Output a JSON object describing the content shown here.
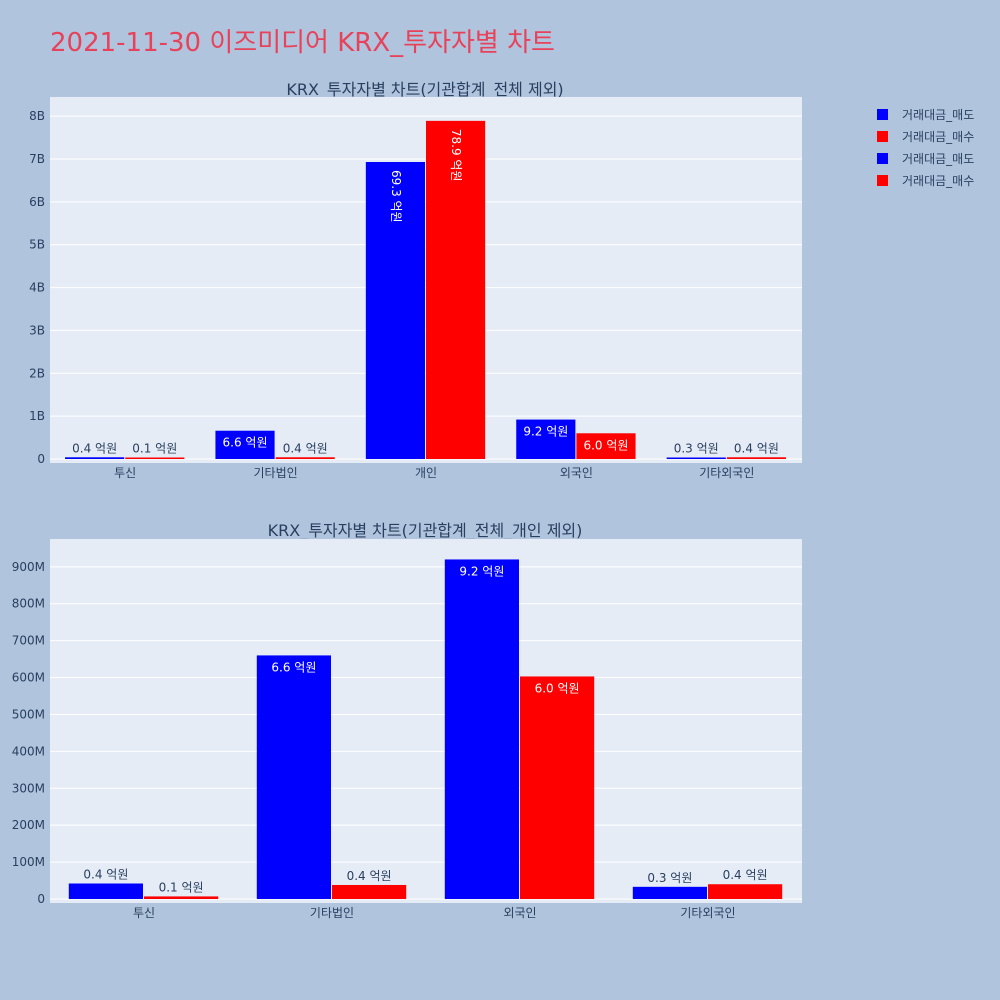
{
  "page_title": "2021-11-30 이즈미디어 KRX_투자자별 차트",
  "colors": {
    "sell": "#0000ff",
    "buy": "#ff0000",
    "plot_bg": "#e5ecf6",
    "page_bg": "#b0c4de",
    "title": "#e8425a"
  },
  "legend": {
    "placement": "top-right",
    "entries": [
      "거래대금_매도",
      "거래대금_매수",
      "거래대금_매도",
      "거래대금_매수"
    ]
  },
  "chart_data": [
    {
      "type": "bar",
      "title": "KRX_투자자별 차트(기관합계_전체 제외)",
      "categories": [
        "투신",
        "기타법인",
        "개인",
        "외국인",
        "기타외국인"
      ],
      "ylim": [
        0,
        8400000000
      ],
      "yticks": [
        0,
        1000000000,
        2000000000,
        3000000000,
        4000000000,
        5000000000,
        6000000000,
        7000000000,
        8000000000
      ],
      "ytick_labels": [
        "0",
        "1B",
        "2B",
        "3B",
        "4B",
        "5B",
        "6B",
        "7B",
        "8B"
      ],
      "grid": true,
      "series": [
        {
          "name": "거래대금_매도",
          "values": [
            40000000,
            660000000,
            6930000000,
            920000000,
            30000000
          ],
          "labels": [
            "0.4 억원",
            "6.6 억원",
            "69.3 억원",
            "9.2 억원",
            "0.3 억원"
          ]
        },
        {
          "name": "거래대금_매수",
          "values": [
            10000000,
            40000000,
            7890000000,
            600000000,
            40000000
          ],
          "labels": [
            "0.1 억원",
            "0.4 억원",
            "78.9 억원",
            "6.0 억원",
            "0.4 억원"
          ]
        }
      ]
    },
    {
      "type": "bar",
      "title": "KRX_투자자별 차트(기관합계_전체_개인 제외)",
      "categories": [
        "투신",
        "기타법인",
        "외국인",
        "기타외국인"
      ],
      "ylim": [
        0,
        970000000
      ],
      "yticks": [
        0,
        100000000,
        200000000,
        300000000,
        400000000,
        500000000,
        600000000,
        700000000,
        800000000,
        900000000
      ],
      "ytick_labels": [
        "0",
        "100M",
        "200M",
        "300M",
        "400M",
        "500M",
        "600M",
        "700M",
        "800M",
        "900M"
      ],
      "grid": true,
      "series": [
        {
          "name": "거래대금_매도",
          "values": [
            42000000,
            660000000,
            920000000,
            33000000
          ],
          "labels": [
            "0.4 억원",
            "6.6 억원",
            "9.2 억원",
            "0.3 억원"
          ]
        },
        {
          "name": "거래대금_매수",
          "values": [
            7000000,
            38000000,
            603000000,
            40000000
          ],
          "labels": [
            "0.1 억원",
            "0.4 억원",
            "6.0 억원",
            "0.4 억원"
          ]
        }
      ]
    }
  ]
}
